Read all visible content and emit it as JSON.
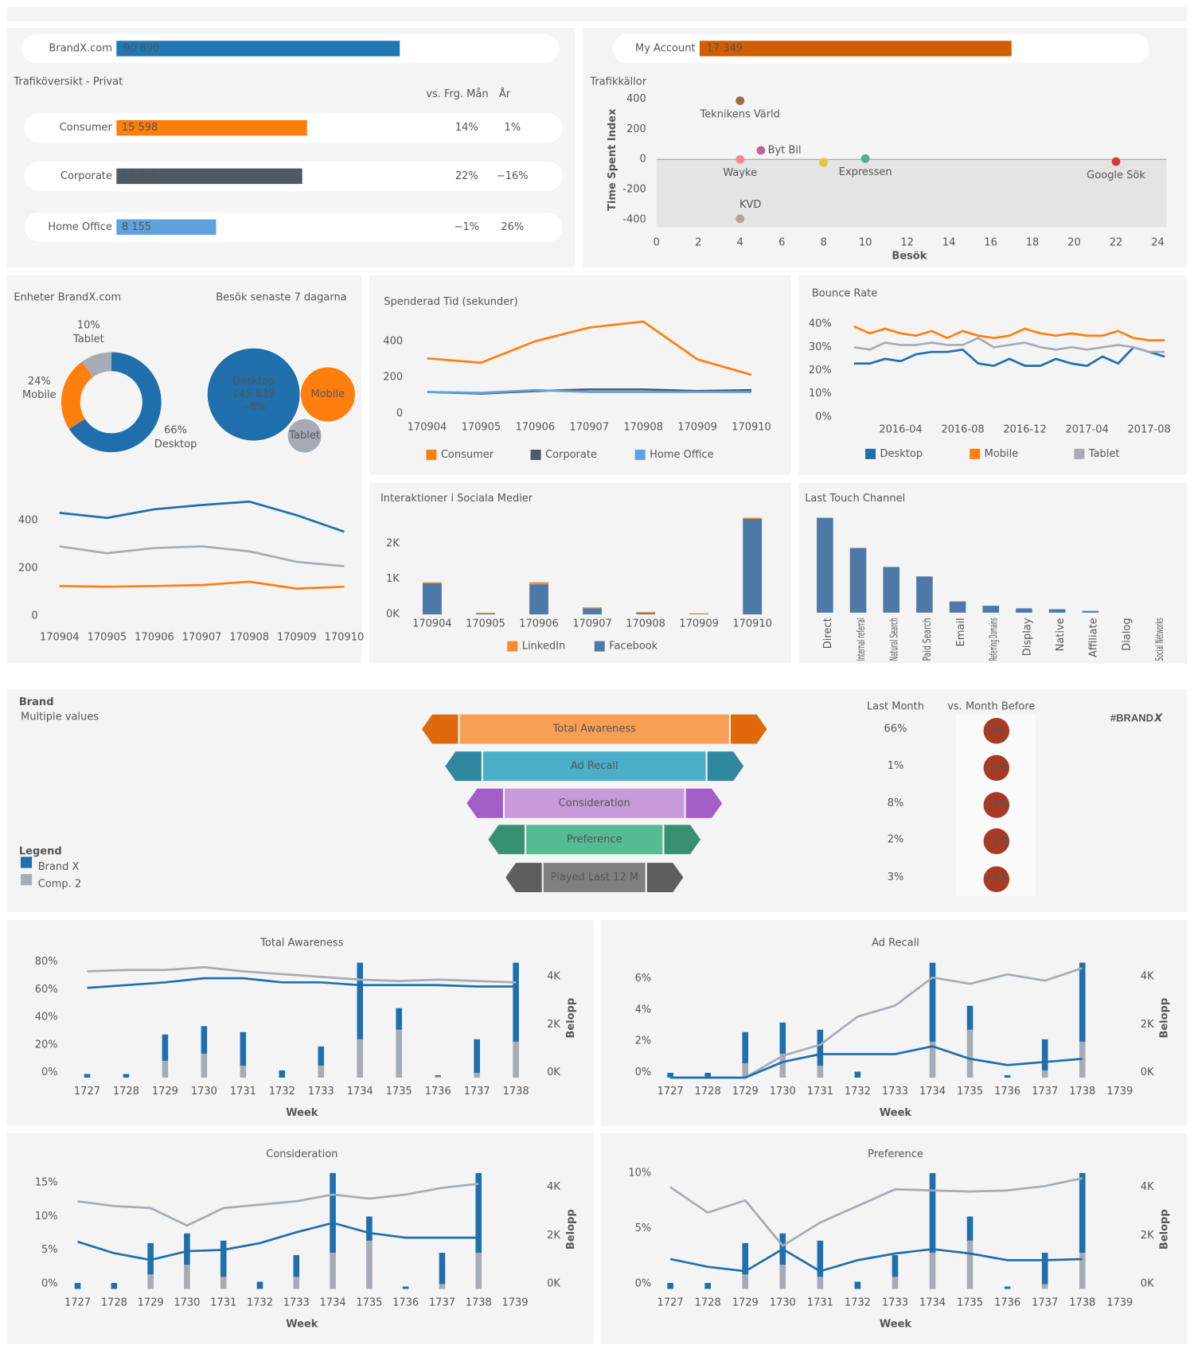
{
  "chart_data": [
    {
      "type": "kpi",
      "label": "BrandX.com",
      "value": 90890,
      "value_label": "90 890",
      "color": "#1f77b4",
      "xlim": [
        0,
        142000
      ]
    },
    {
      "type": "kpi",
      "label": "My Account",
      "value": 17349,
      "value_label": "17 349",
      "color": "#d15f00",
      "xlim": [
        0,
        25000
      ]
    },
    {
      "type": "hbar",
      "title": "Trafiköversikt - Privat",
      "categories": [
        "Consumer",
        "Corporate",
        "Home Office"
      ],
      "values": [
        15598,
        15201,
        8155
      ],
      "value_labels": [
        "15 598",
        "15 201",
        "8 155"
      ],
      "colors": [
        "#ff7f0e",
        "#4e5a65",
        "#5fa2dd"
      ],
      "xlim": [
        0,
        30000
      ],
      "col_headers": [
        "vs. Frg. Mån",
        "År"
      ],
      "vs_month": [
        14,
        22,
        -1
      ],
      "vs_month_labels": [
        "14%",
        "22%",
        "−1%"
      ],
      "vs_year": [
        1,
        -16,
        26
      ],
      "vs_year_labels": [
        "1%",
        "−16%",
        "26%"
      ]
    },
    {
      "type": "scatter",
      "title": "Trafikkällor",
      "xlabel": "Besök",
      "ylabel": "Time Spent Index",
      "names": [
        "Teknikens Värld",
        "Byt Bil",
        "Wayke",
        null,
        "Expressen",
        "KVD",
        "Google Sök"
      ],
      "x": [
        4,
        5,
        4,
        8,
        10,
        4,
        22
      ],
      "y": [
        390,
        60,
        0,
        -20,
        5,
        -395,
        -15
      ],
      "colors": [
        "#9c6b4e",
        "#b5679f",
        "#f08a96",
        "#e8c43a",
        "#58a89a",
        "#b0a69b",
        "#d6393f"
      ],
      "xlim": [
        0,
        24
      ],
      "xticks": [
        0,
        2,
        4,
        6,
        8,
        10,
        12,
        14,
        16,
        18,
        20,
        22,
        24
      ],
      "ylim": [
        -450,
        450
      ],
      "yticks": [
        -400,
        -200,
        0,
        200,
        400
      ]
    },
    {
      "type": "donut",
      "title": "Enheter BrandX.com",
      "categories": [
        "Desktop",
        "Mobile",
        "Tablet"
      ],
      "values": [
        66,
        24,
        10
      ],
      "value_labels": [
        "66%",
        "24%",
        "10%"
      ],
      "colors": [
        "#1f6fad",
        "#ff7f0e",
        "#a5acb5"
      ]
    },
    {
      "type": "bubble",
      "title": "Besök senaste 7 dagarna",
      "categories": [
        "Desktop",
        "Mobile",
        "Tablet"
      ],
      "values": [
        145839,
        51000,
        20000
      ],
      "value_labels": [
        "145 839",
        null,
        null
      ],
      "change": -8,
      "change_label": "−8%",
      "colors": [
        "#1f6fad",
        "#ff7f0e",
        "#a5acb5"
      ]
    },
    {
      "type": "line",
      "categories": [
        "170904",
        "170905",
        "170906",
        "170907",
        "170908",
        "170909",
        "170910"
      ],
      "series": [
        {
          "color": "#1f6fad",
          "values": [
            432,
            411,
            447,
            465,
            479,
            422,
            353
          ]
        },
        {
          "color": "#a5acb5",
          "values": [
            292,
            263,
            285,
            292,
            271,
            227,
            209
          ]
        },
        {
          "color": "#ff7f0e",
          "values": [
            126,
            123,
            126,
            130,
            144,
            115,
            123
          ]
        }
      ],
      "ylim": [
        0,
        480
      ],
      "yticks": [
        0,
        200,
        400
      ]
    },
    {
      "type": "line",
      "title": "Spenderad Tid (sekunder)",
      "categories": [
        "170904",
        "170905",
        "170906",
        "170907",
        "170908",
        "170909",
        "170910"
      ],
      "series": [
        {
          "name": "Consumer",
          "color": "#ff7f0e",
          "values": [
            305,
            281,
            400,
            476,
            509,
            300,
            214
          ]
        },
        {
          "name": "Corporate",
          "color": "#4e5a65",
          "values": [
            119,
            110,
            124,
            133,
            133,
            124,
            129
          ]
        },
        {
          "name": "Home Office",
          "color": "#5fa2dd",
          "values": [
            119,
            114,
            129,
            119,
            119,
            119,
            119
          ]
        }
      ],
      "ylim": [
        0,
        550
      ],
      "yticks": [
        0,
        200,
        400
      ],
      "legend": "bottom"
    },
    {
      "type": "line",
      "title": "Bounce Rate",
      "x": [
        "2016-01",
        "2016-02",
        "2016-03",
        "2016-04",
        "2016-05",
        "2016-06",
        "2016-07",
        "2016-08",
        "2016-09",
        "2016-10",
        "2016-11",
        "2016-12",
        "2017-01",
        "2017-02",
        "2017-03",
        "2017-04",
        "2017-05",
        "2017-06",
        "2017-07",
        "2017-08",
        "2017-09"
      ],
      "xticks": [
        "2016-04",
        "2016-08",
        "2016-12",
        "2017-04",
        "2017-08"
      ],
      "series": [
        {
          "name": "Desktop",
          "color": "#1f6fad",
          "values": [
            23,
            23,
            25,
            24,
            27,
            28,
            28,
            29,
            23,
            22,
            25,
            22,
            22,
            25,
            23,
            22,
            26,
            23,
            30,
            28,
            26
          ]
        },
        {
          "name": "Mobile",
          "color": "#ff7f0e",
          "values": [
            39,
            36,
            38,
            36,
            35,
            37,
            34,
            37,
            35,
            34,
            35,
            38,
            36,
            35,
            36,
            35,
            35,
            37,
            34,
            33,
            33
          ]
        },
        {
          "name": "Tablet",
          "color": "#a5acb5",
          "values": [
            30,
            29,
            32,
            31,
            31,
            32,
            31,
            31,
            34,
            30,
            31,
            32,
            30,
            29,
            30,
            29,
            30,
            31,
            30,
            28,
            28
          ]
        }
      ],
      "ylim": [
        0,
        45
      ],
      "yticks": [
        {
          "value": 0,
          "label": "0%"
        },
        {
          "value": 10,
          "label": "10%"
        },
        {
          "value": 20,
          "label": "20%"
        },
        {
          "value": 30,
          "label": "30%"
        },
        {
          "value": 40,
          "label": "40%"
        }
      ],
      "legend": "bottom"
    },
    {
      "type": "stacked_bar",
      "title": "Interaktioner i Sociala Medier",
      "categories": [
        "170904",
        "170905",
        "170906",
        "170907",
        "170908",
        "170909",
        "170910"
      ],
      "series": [
        {
          "name": "LinkedIn",
          "color": "#f28e2b",
          "values": [
            30,
            25,
            60,
            30,
            30,
            20,
            30
          ]
        },
        {
          "name": "Facebook",
          "color": "#4e79a7",
          "values": [
            880,
            25,
            850,
            170,
            40,
            10,
            2700
          ]
        }
      ],
      "ylim": [
        0,
        2900
      ],
      "yticks": [
        {
          "value": 0,
          "label": "0K"
        },
        {
          "value": 1000,
          "label": "1K"
        },
        {
          "value": 2000,
          "label": "2K"
        }
      ],
      "legend": "bottom"
    },
    {
      "type": "bar",
      "title": "Last Touch Channel",
      "categories": [
        "Direct",
        "Internal referral",
        "Natural Search",
        "Paid Search",
        "Email",
        "Referring Domains",
        "Display",
        "Native",
        "Affiliate",
        "Dialog",
        "Social Networks"
      ],
      "values": [
        110,
        75,
        53,
        42,
        13,
        8,
        5,
        4,
        2,
        0,
        0
      ],
      "color": "#4e79a7",
      "ylim": [
        0,
        115
      ]
    },
    {
      "type": "funnel",
      "title": "Brand",
      "subtitle": "Multiple values",
      "legend_title": "Legend",
      "legend_items": [
        {
          "name": "Brand X",
          "color": "#1f6fad"
        },
        {
          "name": "Comp. 2",
          "color": "#a5acb5"
        }
      ],
      "stages": [
        "Total Awareness",
        "Ad Recall",
        "Consideration",
        "Preference",
        "Played Last 12 M"
      ],
      "colors": [
        "#f7a055",
        "#4bafc9",
        "#c99ad9",
        "#55bb92",
        "#808080"
      ],
      "end_colors": [
        "#e0690c",
        "#2f87a0",
        "#a35dc6",
        "#379070",
        "#5e5e5e"
      ],
      "col_headers": [
        "Last Month",
        "vs. Month Before"
      ],
      "last_month": [
        66,
        1,
        8,
        2,
        3
      ],
      "last_month_labels": [
        "66%",
        "1%",
        "8%",
        "2%",
        "3%"
      ],
      "vs_month": [
        0,
        -2,
        -5,
        -2,
        -4
      ],
      "vs_month_labels": [
        "0%",
        "−2%",
        "−5%",
        "−2%",
        "−4%"
      ],
      "badge_color": "#a83a24",
      "logo": "#BRAND",
      "logo_mark": "X"
    },
    {
      "type": "combo",
      "title": "Total Awareness",
      "xlabel": "Week",
      "y2label": "Belopp",
      "categories": [
        "1727",
        "1728",
        "1729",
        "1730",
        "1731",
        "1732",
        "1733",
        "1734",
        "1735",
        "1736",
        "1737",
        "1738"
      ],
      "series": [
        {
          "type": "bar",
          "axis": "y2",
          "color": "#a5acb5",
          "values": [
            0,
            0,
            700,
            1000,
            500,
            0,
            500,
            1600,
            2000,
            50,
            200,
            1500
          ]
        },
        {
          "type": "bar",
          "axis": "y2",
          "color": "#1f6fad",
          "values": [
            150,
            150,
            1100,
            1150,
            1400,
            300,
            800,
            3200,
            900,
            50,
            1400,
            3300
          ]
        },
        {
          "type": "line",
          "color": "#a5acb5",
          "values": [
            77,
            78,
            78,
            80,
            77,
            75,
            73,
            71,
            70,
            71,
            70,
            69
          ]
        },
        {
          "type": "line",
          "color": "#1f6fad",
          "values": [
            65,
            67,
            69,
            72,
            72,
            69,
            69,
            67,
            67,
            67,
            66,
            66
          ]
        }
      ],
      "ylim": [
        0,
        85
      ],
      "yticks": [
        {
          "value": 0,
          "label": "0%"
        },
        {
          "value": 20,
          "label": "20%"
        },
        {
          "value": 40,
          "label": "40%"
        },
        {
          "value": 60,
          "label": "60%"
        },
        {
          "value": 80,
          "label": "80%"
        }
      ],
      "y2lim": [
        0,
        4900
      ],
      "y2ticks": [
        {
          "value": 0,
          "label": "0K"
        },
        {
          "value": 2000,
          "label": "2K"
        },
        {
          "value": 4000,
          "label": "4K"
        }
      ]
    },
    {
      "type": "combo",
      "title": "Ad Recall",
      "xlabel": "Week",
      "y2label": "Belopp",
      "categories": [
        "1727",
        "1728",
        "1729",
        "1730",
        "1731",
        "1732",
        "1733",
        "1734",
        "1735",
        "1736",
        "1737",
        "1738",
        "1739"
      ],
      "series": [
        {
          "type": "bar",
          "axis": "y2",
          "color": "#a5acb5",
          "values": [
            0,
            0,
            600,
            1000,
            500,
            0,
            0,
            1500,
            2000,
            0,
            300,
            1500,
            null
          ]
        },
        {
          "type": "bar",
          "axis": "y2",
          "color": "#1f6fad",
          "values": [
            200,
            200,
            1300,
            1300,
            1500,
            250,
            0,
            3300,
            1000,
            100,
            1300,
            3300,
            null
          ]
        },
        {
          "type": "line",
          "color": "#a5acb5",
          "values": [
            0,
            0,
            0,
            1.4,
            2.1,
            3.9,
            4.6,
            6.4,
            6.0,
            6.6,
            6.2,
            7.0,
            null
          ]
        },
        {
          "type": "line",
          "color": "#1f6fad",
          "values": [
            0,
            0,
            0,
            1.0,
            1.5,
            1.5,
            1.5,
            2.0,
            1.2,
            0.8,
            1.0,
            1.2,
            null
          ]
        }
      ],
      "ylim": [
        0,
        7.5
      ],
      "yticks": [
        {
          "value": 0,
          "label": "0%"
        },
        {
          "value": 2,
          "label": "2%"
        },
        {
          "value": 4,
          "label": "4%"
        },
        {
          "value": 6,
          "label": "6%"
        }
      ],
      "y2lim": [
        0,
        4900
      ],
      "y2ticks": [
        {
          "value": 0,
          "label": "0K"
        },
        {
          "value": 2000,
          "label": "2K"
        },
        {
          "value": 4000,
          "label": "4K"
        }
      ]
    },
    {
      "type": "combo",
      "title": "Consideration",
      "xlabel": "Week",
      "y2label": "Belopp",
      "categories": [
        "1727",
        "1728",
        "1729",
        "1730",
        "1731",
        "1732",
        "1733",
        "1734",
        "1735",
        "1736",
        "1737",
        "1738",
        "1739"
      ],
      "series": [
        {
          "type": "bar",
          "axis": "y2",
          "color": "#a5acb5",
          "values": [
            0,
            0,
            600,
            1000,
            500,
            0,
            500,
            1500,
            2000,
            0,
            200,
            1500,
            null
          ]
        },
        {
          "type": "bar",
          "axis": "y2",
          "color": "#1f6fad",
          "values": [
            250,
            250,
            1300,
            1300,
            1500,
            300,
            900,
            3300,
            1000,
            100,
            1300,
            3300,
            null
          ]
        },
        {
          "type": "line",
          "color": "#a5acb5",
          "values": [
            13,
            12.3,
            12,
            9.4,
            12,
            12.5,
            13,
            14,
            13.4,
            14,
            15,
            15.6,
            null
          ]
        },
        {
          "type": "line",
          "color": "#1f6fad",
          "values": [
            7,
            5.3,
            4.3,
            5.6,
            5.8,
            6.8,
            8.4,
            9.8,
            8.3,
            7.6,
            7.6,
            7.6,
            null
          ]
        }
      ],
      "ylim": [
        0,
        17.4
      ],
      "yticks": [
        {
          "value": 0,
          "label": "0%"
        },
        {
          "value": 5,
          "label": "5%"
        },
        {
          "value": 10,
          "label": "10%"
        },
        {
          "value": 15,
          "label": "15%"
        }
      ],
      "y2lim": [
        0,
        4860
      ],
      "y2ticks": [
        {
          "value": 0,
          "label": "0K"
        },
        {
          "value": 2000,
          "label": "2K"
        },
        {
          "value": 4000,
          "label": "4K"
        }
      ]
    },
    {
      "type": "combo",
      "title": "Preference",
      "xlabel": "Week",
      "y2label": "Belopp",
      "categories": [
        "1727",
        "1728",
        "1729",
        "1730",
        "1731",
        "1732",
        "1733",
        "1734",
        "1735",
        "1736",
        "1737",
        "1738",
        "1739"
      ],
      "series": [
        {
          "type": "bar",
          "axis": "y2",
          "color": "#a5acb5",
          "values": [
            0,
            0,
            600,
            1000,
            500,
            0,
            500,
            1500,
            2000,
            0,
            200,
            1500,
            null
          ]
        },
        {
          "type": "bar",
          "axis": "y2",
          "color": "#1f6fad",
          "values": [
            250,
            250,
            1300,
            1300,
            1500,
            300,
            900,
            3300,
            1000,
            100,
            1300,
            3300,
            null
          ]
        },
        {
          "type": "line",
          "color": "#a5acb5",
          "values": [
            9.2,
            6.9,
            8.0,
            3.9,
            6.0,
            7.5,
            9.0,
            8.9,
            8.8,
            8.9,
            9.3,
            10.0,
            null
          ]
        },
        {
          "type": "line",
          "color": "#1f6fad",
          "values": [
            2.7,
            2.0,
            1.6,
            3.6,
            1.6,
            2.6,
            3.2,
            3.6,
            3.2,
            2.6,
            2.6,
            2.7,
            null
          ]
        }
      ],
      "ylim": [
        0,
        10.6
      ],
      "yticks": [
        {
          "value": 0,
          "label": "0%"
        },
        {
          "value": 5,
          "label": "5%"
        },
        {
          "value": 10,
          "label": "10%"
        }
      ],
      "y2lim": [
        0,
        4860
      ],
      "y2ticks": [
        {
          "value": 0,
          "label": "0K"
        },
        {
          "value": 2000,
          "label": "2K"
        },
        {
          "value": 4000,
          "label": "4K"
        }
      ]
    }
  ]
}
